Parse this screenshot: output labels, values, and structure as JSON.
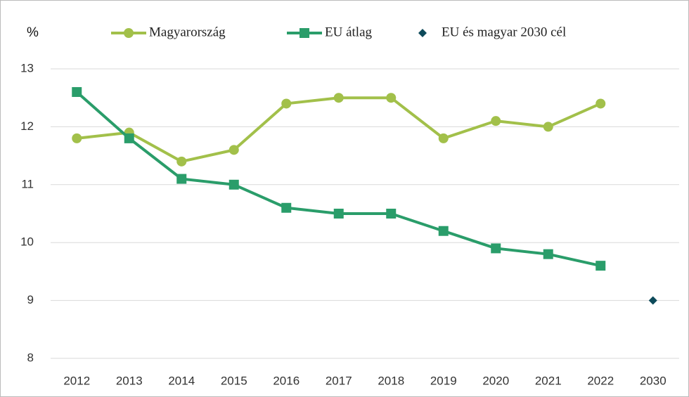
{
  "chart_data": {
    "type": "line",
    "y_label": "%",
    "categories": [
      "2012",
      "2013",
      "2014",
      "2015",
      "2016",
      "2017",
      "2018",
      "2019",
      "2020",
      "2021",
      "2022",
      "2030"
    ],
    "series": [
      {
        "name": "Magyarország",
        "color": "#a2c04a",
        "marker": "circle",
        "line": true,
        "values": [
          11.8,
          11.9,
          11.4,
          11.6,
          12.4,
          12.5,
          12.5,
          11.8,
          12.1,
          12.0,
          12.4,
          null
        ]
      },
      {
        "name": "EU átlag",
        "color": "#2a9d6a",
        "marker": "square",
        "line": true,
        "values": [
          12.6,
          11.8,
          11.1,
          11.0,
          10.6,
          10.5,
          10.5,
          10.2,
          9.9,
          9.8,
          9.6,
          null
        ]
      },
      {
        "name": "EU és magyar 2030 cél",
        "color": "#0d4a5a",
        "marker": "diamond",
        "line": false,
        "values": [
          null,
          null,
          null,
          null,
          null,
          null,
          null,
          null,
          null,
          null,
          null,
          9.0
        ]
      }
    ],
    "ylim": [
      8,
      13
    ],
    "yticks": [
      8,
      9,
      10,
      11,
      12,
      13
    ],
    "grid": true,
    "legend": "top"
  }
}
